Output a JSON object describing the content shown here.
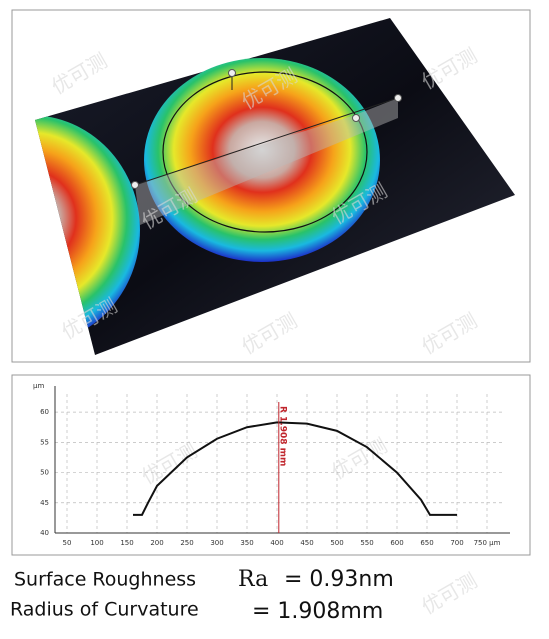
{
  "watermark": "优可测",
  "chart_data": {
    "type": "line",
    "y_unit": "µm",
    "x": [
      160,
      175,
      185,
      200,
      250,
      300,
      350,
      400,
      450,
      500,
      550,
      600,
      640,
      655,
      700
    ],
    "series": [
      {
        "color": "#111111",
        "values": [
          43,
          43,
          45,
          47.8,
          52.5,
          55.6,
          57.5,
          58.3,
          58.1,
          56.9,
          54.2,
          50,
          45.5,
          43,
          43
        ]
      }
    ],
    "xlim": [
      30,
      780
    ],
    "ylim": [
      40,
      63
    ],
    "xticks": [
      50,
      100,
      150,
      200,
      250,
      300,
      350,
      400,
      450,
      500,
      550,
      600,
      650,
      700,
      {
        "value": 750,
        "label": "750 µm"
      }
    ],
    "yticks": [
      40,
      45,
      50,
      55,
      60
    ],
    "grid": true,
    "annotation": {
      "text": "R 1.908 mm",
      "x": 403,
      "color": "#c0262d"
    }
  },
  "results": [
    {
      "label": "Surface Roughness",
      "symbol": "Ra",
      "value": "= 0.93nm"
    },
    {
      "label": "Radius of Curvature",
      "value": "= 1.908mm"
    }
  ]
}
